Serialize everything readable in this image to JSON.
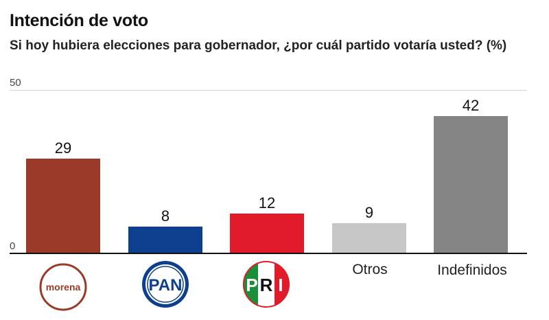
{
  "title": "Intención de voto",
  "subtitle": "Si hoy hubiera elecciones para gobernador, ¿por cuál partido votaría usted? (%)",
  "chart_data": {
    "type": "bar",
    "title": "Intención de voto",
    "subtitle": "Si hoy hubiera elecciones para gobernador, ¿por cuál partido votaría usted? (%)",
    "categories": [
      "morena",
      "PAN",
      "PRI",
      "Otros",
      "Indefinidos"
    ],
    "values": [
      29,
      8,
      12,
      9,
      42
    ],
    "colors": [
      "#9b3a28",
      "#0d3f8f",
      "#e21b2b",
      "#c6c6c6",
      "#848484"
    ],
    "ylim": [
      0,
      50
    ],
    "yticks": [
      "0",
      "50"
    ],
    "xlabel": "",
    "ylabel": "",
    "grid": true
  },
  "logos": {
    "morena": {
      "text": "morena",
      "color": "#9b3a28"
    },
    "pan": {
      "text": "PAN",
      "color": "#0d3f8f"
    },
    "pri": {
      "letters": [
        "P",
        "R",
        "I"
      ],
      "green": "#1a8f3a",
      "red": "#e21b2b"
    }
  }
}
